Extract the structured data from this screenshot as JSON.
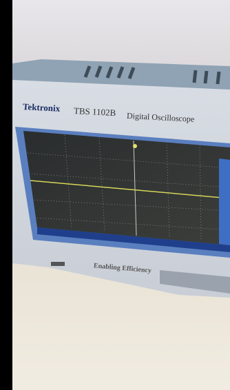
{
  "brand": "Tektronix",
  "model": "TBS 1102B",
  "product": "Digital Oscilloscope",
  "slogan": "Enabling Efficiency"
}
